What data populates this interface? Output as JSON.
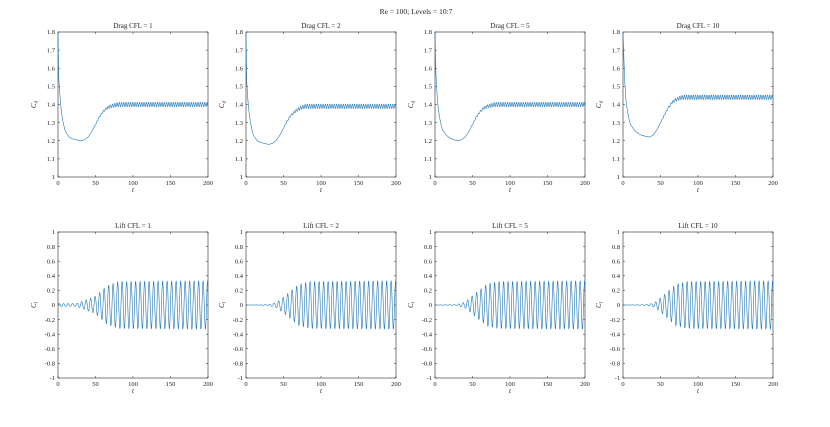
{
  "figure": {
    "suptitle": "Re = 100; Levels = 10:7",
    "series_color": "#1f77b4"
  },
  "chart_data": [
    {
      "type": "line",
      "title": "Drag CFL = 1",
      "xlabel": "t",
      "ylabel": "C_d",
      "xlim": [
        0,
        200
      ],
      "ylim": [
        1,
        1.8
      ],
      "xticks": [
        0,
        50,
        100,
        150,
        200
      ],
      "yticks": [
        1,
        1.1,
        1.2,
        1.3,
        1.4,
        1.5,
        1.6,
        1.7,
        1.8
      ],
      "grid": false,
      "series": [
        {
          "x": [
            0,
            1,
            2,
            4,
            6,
            8,
            10,
            15,
            20,
            25,
            30,
            35,
            40,
            45,
            50,
            55,
            60,
            65,
            70,
            75,
            80,
            90,
            100,
            120,
            150,
            200
          ],
          "y": [
            1.8,
            1.55,
            1.48,
            1.38,
            1.32,
            1.28,
            1.25,
            1.22,
            1.21,
            1.205,
            1.2,
            1.205,
            1.22,
            1.25,
            1.29,
            1.33,
            1.36,
            1.38,
            1.39,
            1.395,
            1.4,
            1.4,
            1.4,
            1.4,
            1.4,
            1.4
          ],
          "oscillation": {
            "amplitude_envelope": [
              [
                0,
                0
              ],
              [
                45,
                0
              ],
              [
                80,
                0.012
              ],
              [
                200,
                0.012
              ]
            ],
            "period": 3
          }
        }
      ]
    },
    {
      "type": "line",
      "title": "Drag CFL = 2",
      "xlabel": "t",
      "ylabel": "C_d",
      "xlim": [
        0,
        200
      ],
      "ylim": [
        1,
        1.8
      ],
      "xticks": [
        0,
        50,
        100,
        150,
        200
      ],
      "yticks": [
        1,
        1.1,
        1.2,
        1.3,
        1.4,
        1.5,
        1.6,
        1.7,
        1.8
      ],
      "grid": false,
      "series": [
        {
          "x": [
            0,
            1,
            2,
            4,
            6,
            8,
            10,
            15,
            20,
            25,
            30,
            35,
            40,
            45,
            50,
            55,
            60,
            65,
            70,
            75,
            80,
            90,
            100,
            120,
            150,
            200
          ],
          "y": [
            1.8,
            1.53,
            1.45,
            1.36,
            1.3,
            1.26,
            1.23,
            1.2,
            1.19,
            1.185,
            1.18,
            1.185,
            1.2,
            1.23,
            1.27,
            1.31,
            1.34,
            1.36,
            1.375,
            1.385,
            1.39,
            1.39,
            1.39,
            1.39,
            1.39,
            1.39
          ],
          "oscillation": {
            "amplitude_envelope": [
              [
                0,
                0
              ],
              [
                45,
                0
              ],
              [
                80,
                0.012
              ],
              [
                200,
                0.012
              ]
            ],
            "period": 3
          }
        }
      ]
    },
    {
      "type": "line",
      "title": "Drag CFL = 5",
      "xlabel": "t",
      "ylabel": "C_d",
      "xlim": [
        0,
        200
      ],
      "ylim": [
        1,
        1.8
      ],
      "xticks": [
        0,
        50,
        100,
        150,
        200
      ],
      "yticks": [
        1,
        1.1,
        1.2,
        1.3,
        1.4,
        1.5,
        1.6,
        1.7,
        1.8
      ],
      "grid": false,
      "series": [
        {
          "x": [
            0,
            1,
            2,
            4,
            6,
            8,
            10,
            15,
            20,
            25,
            30,
            35,
            40,
            45,
            50,
            55,
            60,
            65,
            70,
            75,
            80,
            90,
            100,
            120,
            150,
            200
          ],
          "y": [
            1.8,
            1.6,
            1.5,
            1.39,
            1.33,
            1.29,
            1.26,
            1.23,
            1.215,
            1.205,
            1.2,
            1.205,
            1.22,
            1.25,
            1.29,
            1.33,
            1.36,
            1.38,
            1.39,
            1.395,
            1.4,
            1.4,
            1.4,
            1.4,
            1.4,
            1.4
          ],
          "oscillation": {
            "amplitude_envelope": [
              [
                0,
                0
              ],
              [
                45,
                0
              ],
              [
                80,
                0.012
              ],
              [
                200,
                0.012
              ]
            ],
            "period": 3
          }
        }
      ]
    },
    {
      "type": "line",
      "title": "Drag CFL = 10",
      "xlabel": "t",
      "ylabel": "C_d",
      "xlim": [
        0,
        200
      ],
      "ylim": [
        1,
        1.8
      ],
      "xticks": [
        0,
        50,
        100,
        150,
        200
      ],
      "yticks": [
        1,
        1.1,
        1.2,
        1.3,
        1.4,
        1.5,
        1.6,
        1.7,
        1.8
      ],
      "grid": false,
      "series": [
        {
          "x": [
            0,
            1,
            2,
            4,
            6,
            8,
            10,
            15,
            20,
            25,
            30,
            35,
            40,
            45,
            50,
            55,
            60,
            65,
            70,
            75,
            80,
            90,
            100,
            120,
            150,
            200
          ],
          "y": [
            1.8,
            1.68,
            1.55,
            1.42,
            1.36,
            1.32,
            1.29,
            1.26,
            1.24,
            1.23,
            1.225,
            1.22,
            1.23,
            1.26,
            1.3,
            1.34,
            1.38,
            1.41,
            1.425,
            1.435,
            1.44,
            1.44,
            1.44,
            1.44,
            1.44,
            1.44
          ],
          "oscillation": {
            "amplitude_envelope": [
              [
                0,
                0
              ],
              [
                45,
                0
              ],
              [
                80,
                0.012
              ],
              [
                200,
                0.012
              ]
            ],
            "period": 3
          }
        }
      ]
    },
    {
      "type": "line",
      "title": "Lift CFL = 1",
      "xlabel": "t",
      "ylabel": "C_l",
      "xlim": [
        0,
        200
      ],
      "ylim": [
        -1,
        1
      ],
      "xticks": [
        0,
        50,
        100,
        150,
        200
      ],
      "yticks": [
        -1,
        -0.8,
        -0.6,
        -0.4,
        -0.2,
        0,
        0.2,
        0.4,
        0.6,
        0.8,
        1
      ],
      "grid": false,
      "series": [
        {
          "x": [
            0,
            200
          ],
          "y": [
            0,
            0
          ],
          "oscillation": {
            "amplitude_envelope": [
              [
                0,
                0.02
              ],
              [
                25,
                0.02
              ],
              [
                30,
                0.04
              ],
              [
                50,
                0.12
              ],
              [
                65,
                0.26
              ],
              [
                80,
                0.32
              ],
              [
                200,
                0.33
              ]
            ],
            "period": 6
          }
        }
      ]
    },
    {
      "type": "line",
      "title": "Lift CFL = 2",
      "xlabel": "t",
      "ylabel": "C_l",
      "xlim": [
        0,
        200
      ],
      "ylim": [
        -1,
        1
      ],
      "xticks": [
        0,
        50,
        100,
        150,
        200
      ],
      "yticks": [
        -1,
        -0.8,
        -0.6,
        -0.4,
        -0.2,
        0,
        0.2,
        0.4,
        0.6,
        0.8,
        1
      ],
      "grid": false,
      "series": [
        {
          "x": [
            0,
            200
          ],
          "y": [
            0,
            0
          ],
          "oscillation": {
            "amplitude_envelope": [
              [
                0,
                0
              ],
              [
                28,
                0.005
              ],
              [
                40,
                0.03
              ],
              [
                55,
                0.15
              ],
              [
                70,
                0.28
              ],
              [
                85,
                0.32
              ],
              [
                200,
                0.33
              ]
            ],
            "period": 6
          }
        }
      ]
    },
    {
      "type": "line",
      "title": "Lift CFL = 5",
      "xlabel": "t",
      "ylabel": "C_l",
      "xlim": [
        0,
        200
      ],
      "ylim": [
        -1,
        1
      ],
      "xticks": [
        0,
        50,
        100,
        150,
        200
      ],
      "yticks": [
        -1,
        -0.8,
        -0.6,
        -0.4,
        -0.2,
        0,
        0.2,
        0.4,
        0.6,
        0.8,
        1
      ],
      "grid": false,
      "series": [
        {
          "x": [
            0,
            200
          ],
          "y": [
            0,
            0
          ],
          "oscillation": {
            "amplitude_envelope": [
              [
                0,
                0
              ],
              [
                28,
                0.005
              ],
              [
                40,
                0.04
              ],
              [
                55,
                0.17
              ],
              [
                70,
                0.29
              ],
              [
                85,
                0.32
              ],
              [
                200,
                0.33
              ]
            ],
            "period": 6
          }
        }
      ]
    },
    {
      "type": "line",
      "title": "Lift CFL = 10",
      "xlabel": "t",
      "ylabel": "C_l",
      "xlim": [
        0,
        200
      ],
      "ylim": [
        -1,
        1
      ],
      "xticks": [
        0,
        50,
        100,
        150,
        200
      ],
      "yticks": [
        -1,
        -0.8,
        -0.6,
        -0.4,
        -0.2,
        0,
        0.2,
        0.4,
        0.6,
        0.8,
        1
      ],
      "grid": false,
      "series": [
        {
          "x": [
            0,
            200
          ],
          "y": [
            0,
            0
          ],
          "oscillation": {
            "amplitude_envelope": [
              [
                0,
                0
              ],
              [
                32,
                0.005
              ],
              [
                42,
                0.03
              ],
              [
                55,
                0.14
              ],
              [
                70,
                0.28
              ],
              [
                85,
                0.32
              ],
              [
                200,
                0.33
              ]
            ],
            "period": 6
          }
        }
      ]
    }
  ]
}
